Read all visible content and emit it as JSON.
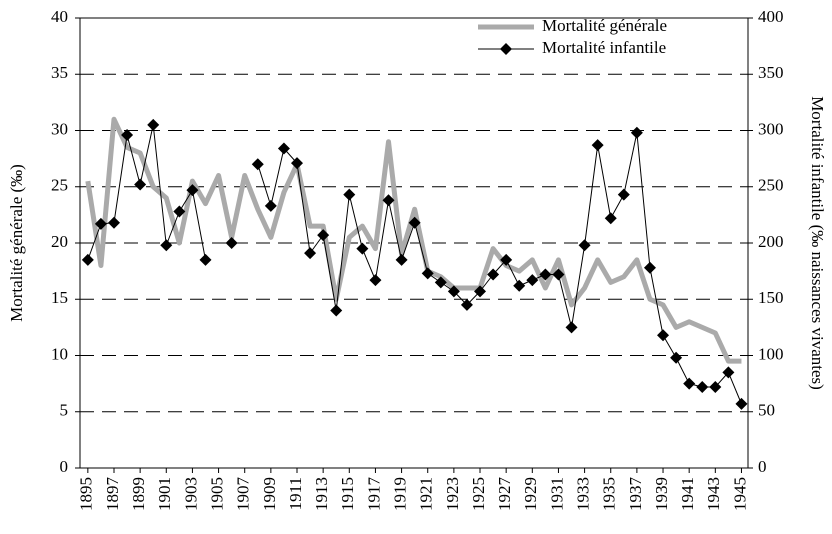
{
  "chart_data": {
    "type": "line",
    "x": [
      1895,
      1896,
      1897,
      1898,
      1899,
      1900,
      1901,
      1902,
      1903,
      1904,
      1905,
      1906,
      1907,
      1908,
      1909,
      1910,
      1911,
      1912,
      1913,
      1914,
      1915,
      1916,
      1917,
      1918,
      1919,
      1920,
      1921,
      1922,
      1923,
      1924,
      1925,
      1926,
      1927,
      1928,
      1929,
      1930,
      1931,
      1932,
      1933,
      1934,
      1935,
      1936,
      1937,
      1938,
      1939,
      1940,
      1941,
      1942,
      1943,
      1944,
      1945
    ],
    "xlim": [
      1894.4,
      1945.5
    ],
    "xticks": [
      1895,
      1897,
      1899,
      1901,
      1903,
      1905,
      1907,
      1909,
      1911,
      1913,
      1915,
      1917,
      1919,
      1921,
      1923,
      1925,
      1927,
      1929,
      1931,
      1933,
      1935,
      1937,
      1939,
      1941,
      1943,
      1945
    ],
    "ylabel": "Mortalité générale (‰)",
    "y2label": "Mortalité infantile (‰ naissances vivantes)",
    "ylim": [
      0,
      40
    ],
    "yticks": [
      0,
      5,
      10,
      15,
      20,
      25,
      30,
      35,
      40
    ],
    "y2lim": [
      0,
      400
    ],
    "y2ticks": [
      0,
      50,
      100,
      150,
      200,
      250,
      300,
      350,
      400
    ],
    "grid": true,
    "legend": "upper right",
    "series": [
      {
        "name": "Mortalité générale",
        "color": "#aaaaaa",
        "values": [
          25.5,
          18,
          31,
          28.5,
          28,
          25,
          24,
          20,
          25.5,
          23.5,
          26,
          20.5,
          26,
          23,
          20.5,
          24.5,
          27,
          21.5,
          21.5,
          15,
          20.5,
          21.5,
          19.5,
          29,
          19,
          23,
          17.5,
          17,
          16,
          16,
          16,
          19.5,
          18,
          17.5,
          18.5,
          16,
          18.5,
          14.5,
          16,
          18.5,
          16.5,
          17,
          18.5,
          15,
          14.5,
          12.5,
          13,
          12.5,
          12,
          9.5,
          9.5
        ]
      },
      {
        "name": "Mortalité infantile",
        "color": "#000000",
        "axis": "y2",
        "values": [
          185,
          217,
          218,
          296,
          252,
          305,
          198,
          228,
          247,
          185,
          null,
          200,
          null,
          270,
          233,
          284,
          271,
          191,
          207,
          140,
          243,
          195,
          167,
          238,
          185,
          218,
          173,
          165,
          157,
          145,
          157,
          172,
          185,
          162,
          167,
          172,
          172,
          125,
          198,
          287,
          222,
          243,
          298,
          178,
          118,
          98,
          75,
          72,
          72,
          85,
          57
        ]
      }
    ]
  }
}
